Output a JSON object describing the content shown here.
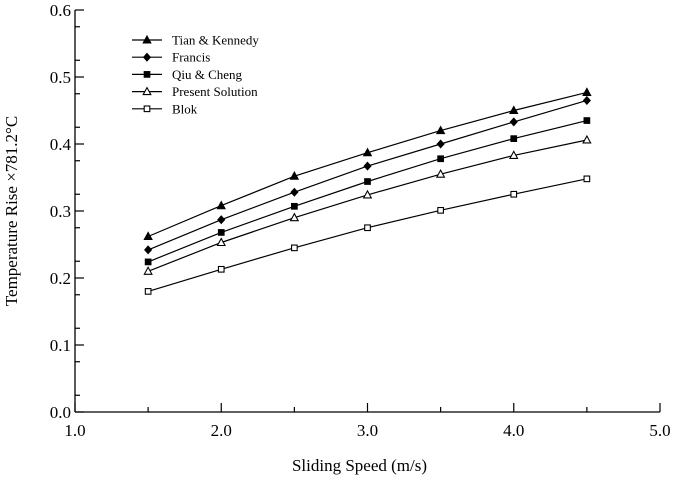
{
  "chart_data": {
    "type": "line",
    "title": "",
    "xlabel": "Sliding Speed (m/s)",
    "ylabel": "Temperature Rise ×781.2°C",
    "xlim": [
      1.0,
      5.0
    ],
    "ylim": [
      0.0,
      0.6
    ],
    "xticks": [
      "1.0",
      "2.0",
      "3.0",
      "4.0",
      "5.0"
    ],
    "yticks": [
      "0.0",
      "0.1",
      "0.2",
      "0.3",
      "0.4",
      "0.5",
      "0.6"
    ],
    "grid": false,
    "legend_position": "top-left",
    "x": [
      1.5,
      2.0,
      2.5,
      3.0,
      3.5,
      4.0,
      4.5
    ],
    "series": [
      {
        "name": "Tian & Kennedy",
        "marker": "filled-triangle",
        "values": [
          0.262,
          0.308,
          0.352,
          0.387,
          0.42,
          0.45,
          0.477
        ]
      },
      {
        "name": "Francis",
        "marker": "filled-diamond",
        "values": [
          0.242,
          0.287,
          0.328,
          0.367,
          0.4,
          0.433,
          0.465
        ]
      },
      {
        "name": "Qiu & Cheng",
        "marker": "filled-square",
        "values": [
          0.224,
          0.268,
          0.307,
          0.344,
          0.378,
          0.408,
          0.435
        ]
      },
      {
        "name": "Present Solution",
        "marker": "open-triangle",
        "values": [
          0.21,
          0.253,
          0.29,
          0.324,
          0.355,
          0.383,
          0.406
        ]
      },
      {
        "name": "Blok",
        "marker": "open-square",
        "values": [
          0.18,
          0.213,
          0.245,
          0.275,
          0.301,
          0.325,
          0.348
        ]
      }
    ]
  }
}
